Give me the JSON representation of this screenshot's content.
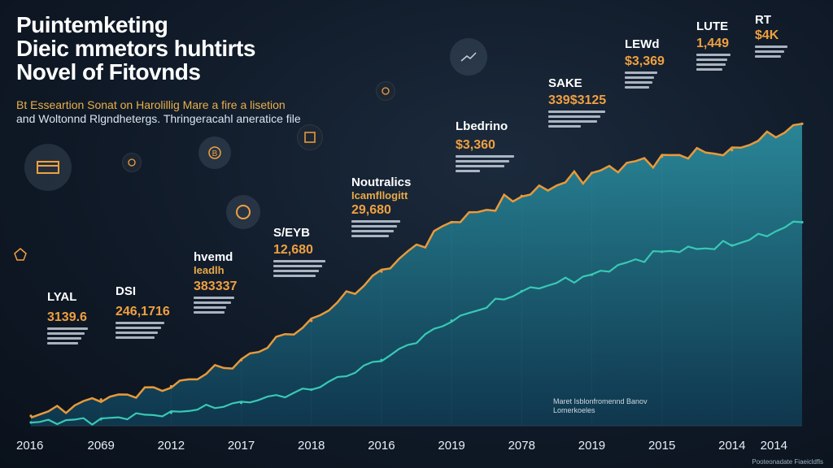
{
  "title": [
    "Puintemketing",
    "Dieic mmetors huhtirts",
    "Novel of Fitovnds"
  ],
  "subtitle": [
    "Bt Esseartion Sonat on Harolillig Mare a fire a lisetion",
    "and Woltonnd Rlgndhetergs. Thringeracahl aneratice file"
  ],
  "footnote": [
    "Maret  Isblonfromennd Banov",
    "Lomerkoeles"
  ],
  "credit": "Pooteonadate Fiaeicldfls",
  "colors": {
    "area_line": "#e89a3a",
    "lower_line": "#38c9b4",
    "area_fill": "#1f6d82",
    "accent": "#f0a040"
  },
  "icons": [
    "card-icon",
    "bitcoin-icon",
    "money-icon",
    "coin-icon",
    "chart-icon",
    "coin-icon",
    "percent-icon",
    "star-icon"
  ],
  "annotations": [
    {
      "label": "LYAL",
      "value": "3139.6"
    },
    {
      "label": "DSI",
      "value": "246,1716"
    },
    {
      "label": "hvemd",
      "sub": "Ieadlh",
      "value": "383337"
    },
    {
      "label": "S/EYB",
      "value": "12,680"
    },
    {
      "label": "Noutralics",
      "sub": "Icamfllogitt",
      "value": "29,680"
    },
    {
      "label": "Lbedrino",
      "value": "$3,360"
    },
    {
      "label": "SAKE",
      "value": "339$3125"
    },
    {
      "label": "LEWd",
      "value": "$3,369"
    },
    {
      "label": "LUTE",
      "value": "1,449"
    },
    {
      "label": "RT",
      "value": "$4K"
    }
  ],
  "chart_data": {
    "type": "area",
    "x": [
      "2016",
      "2069",
      "2012",
      "2017",
      "2018",
      "2016",
      "2019",
      "2078",
      "2019",
      "2015",
      "2014",
      "2014"
    ],
    "series": [
      {
        "values": [
          3,
          8,
          12,
          20,
          32,
          47,
          62,
          70,
          77,
          82,
          84,
          92
        ]
      },
      {
        "values": [
          1,
          2,
          4,
          7,
          11,
          20,
          32,
          41,
          46,
          53,
          55,
          62
        ]
      }
    ],
    "ylim": [
      0,
      100
    ],
    "grid": false
  }
}
